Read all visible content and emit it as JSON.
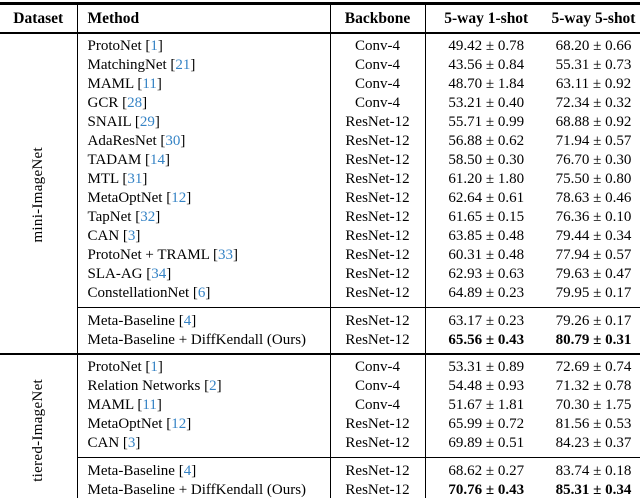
{
  "page": {
    "background": "#ffffff",
    "text_color": "#000000",
    "cite_color": "#3583c5",
    "rule_color": "#000000"
  },
  "header": {
    "dataset": "Dataset",
    "method": "Method",
    "backbone": "Backbone",
    "one_shot": "5-way 1-shot",
    "five_shot": "5-way 5-shot"
  },
  "sections": [
    {
      "dataset": "mini-ImageNet",
      "groups": [
        [
          {
            "method": "ProtoNet",
            "ref": "1",
            "backbone": "Conv-4",
            "one_shot": "49.42 ± 0.78",
            "five_shot": "68.20 ± 0.66",
            "bold": false
          },
          {
            "method": "MatchingNet",
            "ref": "21",
            "backbone": "Conv-4",
            "one_shot": "43.56 ± 0.84",
            "five_shot": "55.31 ± 0.73",
            "bold": false
          },
          {
            "method": "MAML",
            "ref": "11",
            "backbone": "Conv-4",
            "one_shot": "48.70 ± 1.84",
            "five_shot": "63.11 ± 0.92",
            "bold": false
          },
          {
            "method": "GCR",
            "ref": "28",
            "backbone": "Conv-4",
            "one_shot": "53.21 ± 0.40",
            "five_shot": "72.34 ± 0.32",
            "bold": false
          },
          {
            "method": "SNAIL",
            "ref": "29",
            "backbone": "ResNet-12",
            "one_shot": "55.71 ± 0.99",
            "five_shot": "68.88 ± 0.92",
            "bold": false
          },
          {
            "method": "AdaResNet",
            "ref": "30",
            "backbone": "ResNet-12",
            "one_shot": "56.88 ± 0.62",
            "five_shot": "71.94 ± 0.57",
            "bold": false
          },
          {
            "method": "TADAM",
            "ref": "14",
            "backbone": "ResNet-12",
            "one_shot": "58.50 ± 0.30",
            "five_shot": "76.70 ± 0.30",
            "bold": false
          },
          {
            "method": "MTL",
            "ref": "31",
            "backbone": "ResNet-12",
            "one_shot": "61.20 ± 1.80",
            "five_shot": "75.50 ± 0.80",
            "bold": false
          },
          {
            "method": "MetaOptNet",
            "ref": "12",
            "backbone": "ResNet-12",
            "one_shot": "62.64 ± 0.61",
            "five_shot": "78.63 ± 0.46",
            "bold": false
          },
          {
            "method": "TapNet",
            "ref": "32",
            "backbone": "ResNet-12",
            "one_shot": "61.65 ± 0.15",
            "five_shot": "76.36 ± 0.10",
            "bold": false
          },
          {
            "method": "CAN",
            "ref": "3",
            "backbone": "ResNet-12",
            "one_shot": "63.85 ± 0.48",
            "five_shot": "79.44 ± 0.34",
            "bold": false
          },
          {
            "method": "ProtoNet + TRAML",
            "ref": "33",
            "backbone": "ResNet-12",
            "one_shot": "60.31 ± 0.48",
            "five_shot": "77.94 ± 0.57",
            "bold": false
          },
          {
            "method": "SLA-AG",
            "ref": "34",
            "backbone": "ResNet-12",
            "one_shot": "62.93 ± 0.63",
            "five_shot": "79.63 ± 0.47",
            "bold": false
          },
          {
            "method": "ConstellationNet",
            "ref": "6",
            "backbone": "ResNet-12",
            "one_shot": "64.89 ± 0.23",
            "five_shot": "79.95 ± 0.17",
            "bold": false
          }
        ],
        [
          {
            "method": "Meta-Baseline",
            "ref": "4",
            "backbone": "ResNet-12",
            "one_shot": "63.17 ± 0.23",
            "five_shot": "79.26 ± 0.17",
            "bold": false
          },
          {
            "method": "Meta-Baseline + DiffKendall (Ours)",
            "ref": null,
            "backbone": "ResNet-12",
            "one_shot": "65.56 ± 0.43",
            "five_shot": "80.79 ± 0.31",
            "bold": true
          }
        ]
      ]
    },
    {
      "dataset": "tiered-ImageNet",
      "groups": [
        [
          {
            "method": "ProtoNet",
            "ref": "1",
            "backbone": "Conv-4",
            "one_shot": "53.31 ± 0.89",
            "five_shot": "72.69 ± 0.74",
            "bold": false
          },
          {
            "method": "Relation Networks",
            "ref": "2",
            "backbone": "Conv-4",
            "one_shot": "54.48 ± 0.93",
            "five_shot": "71.32 ± 0.78",
            "bold": false
          },
          {
            "method": "MAML",
            "ref": "11",
            "backbone": "Conv-4",
            "one_shot": "51.67 ± 1.81",
            "five_shot": "70.30 ± 1.75",
            "bold": false
          },
          {
            "method": "MetaOptNet",
            "ref": "12",
            "backbone": "ResNet-12",
            "one_shot": "65.99 ± 0.72",
            "five_shot": "81.56 ± 0.53",
            "bold": false
          },
          {
            "method": "CAN",
            "ref": "3",
            "backbone": "ResNet-12",
            "one_shot": "69.89 ± 0.51",
            "five_shot": "84.23 ± 0.37",
            "bold": false
          }
        ],
        [
          {
            "method": "Meta-Baseline",
            "ref": "4",
            "backbone": "ResNet-12",
            "one_shot": "68.62 ± 0.27",
            "five_shot": "83.74 ± 0.18",
            "bold": false
          },
          {
            "method": "Meta-Baseline + DiffKendall (Ours)",
            "ref": null,
            "backbone": "ResNet-12",
            "one_shot": "70.76 ± 0.43",
            "five_shot": "85.31 ± 0.34",
            "bold": true
          }
        ]
      ]
    }
  ]
}
